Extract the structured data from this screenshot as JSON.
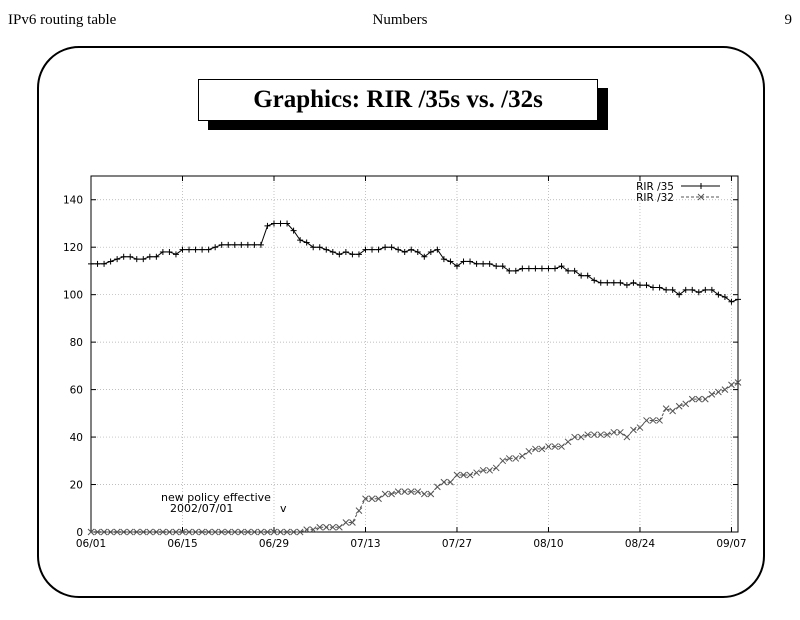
{
  "header": {
    "left": "IPv6 routing table",
    "center": "Numbers",
    "right": "9"
  },
  "slide_title": "Graphics: RIR /35s vs. /32s",
  "chart_data": {
    "type": "line",
    "x_ticks": [
      "06/01",
      "06/15",
      "06/29",
      "07/13",
      "07/27",
      "08/10",
      "08/24",
      "09/07"
    ],
    "x_tick_days": [
      0,
      14,
      28,
      42,
      56,
      70,
      84,
      98
    ],
    "xlim": [
      0,
      99
    ],
    "ylim": [
      0,
      150
    ],
    "y_ticks": [
      0,
      20,
      40,
      60,
      80,
      100,
      120,
      140
    ],
    "grid": true,
    "legend_position": "top-right",
    "annotation_lines": [
      "new policy effective",
      "2002/07/01",
      "v"
    ],
    "series": [
      {
        "name": "RIR /35",
        "marker": "+",
        "style": "solid",
        "x": [
          0,
          1,
          2,
          3,
          4,
          5,
          6,
          7,
          8,
          9,
          10,
          11,
          12,
          13,
          14,
          15,
          16,
          17,
          18,
          19,
          20,
          21,
          22,
          23,
          24,
          25,
          26,
          27,
          28,
          29,
          30,
          31,
          32,
          33,
          34,
          35,
          36,
          37,
          38,
          39,
          40,
          41,
          42,
          43,
          44,
          45,
          46,
          47,
          48,
          49,
          50,
          51,
          52,
          53,
          54,
          55,
          56,
          57,
          58,
          59,
          60,
          61,
          62,
          63,
          64,
          65,
          66,
          67,
          68,
          69,
          70,
          71,
          72,
          73,
          74,
          75,
          76,
          77,
          78,
          79,
          80,
          81,
          82,
          83,
          84,
          85,
          86,
          87,
          88,
          89,
          90,
          91,
          92,
          93,
          94,
          95,
          96,
          97,
          98,
          99
        ],
        "y": [
          113,
          113,
          113,
          114,
          115,
          116,
          116,
          115,
          115,
          116,
          116,
          118,
          118,
          117,
          119,
          119,
          119,
          119,
          119,
          120,
          121,
          121,
          121,
          121,
          121,
          121,
          121,
          129,
          130,
          130,
          130,
          127,
          123,
          122,
          120,
          120,
          119,
          118,
          117,
          118,
          117,
          117,
          119,
          119,
          119,
          120,
          120,
          119,
          118,
          119,
          118,
          116,
          118,
          119,
          115,
          114,
          112,
          114,
          114,
          113,
          113,
          113,
          112,
          112,
          110,
          110,
          111,
          111,
          111,
          111,
          111,
          111,
          112,
          110,
          110,
          108,
          108,
          106,
          105,
          105,
          105,
          105,
          104,
          105,
          104,
          104,
          103,
          103,
          102,
          102,
          100,
          102,
          102,
          101,
          102,
          102,
          100,
          99,
          97,
          98
        ]
      },
      {
        "name": "RIR /32",
        "marker": "x",
        "style": "dashed",
        "x": [
          0,
          1,
          2,
          3,
          4,
          5,
          6,
          7,
          8,
          9,
          10,
          11,
          12,
          13,
          14,
          15,
          16,
          17,
          18,
          19,
          20,
          21,
          22,
          23,
          24,
          25,
          26,
          27,
          28,
          29,
          30,
          31,
          32,
          33,
          34,
          35,
          36,
          37,
          38,
          39,
          40,
          41,
          42,
          43,
          44,
          45,
          46,
          47,
          48,
          49,
          50,
          51,
          52,
          53,
          54,
          55,
          56,
          57,
          58,
          59,
          60,
          61,
          62,
          63,
          64,
          65,
          66,
          67,
          68,
          69,
          70,
          71,
          72,
          73,
          74,
          75,
          76,
          77,
          78,
          79,
          80,
          81,
          82,
          83,
          84,
          85,
          86,
          87,
          88,
          89,
          90,
          91,
          92,
          93,
          94,
          95,
          96,
          97,
          98,
          99
        ],
        "y": [
          0,
          0,
          0,
          0,
          0,
          0,
          0,
          0,
          0,
          0,
          0,
          0,
          0,
          0,
          0,
          0,
          0,
          0,
          0,
          0,
          0,
          0,
          0,
          0,
          0,
          0,
          0,
          0,
          0,
          0,
          0,
          0,
          0,
          1,
          1,
          2,
          2,
          2,
          2,
          4,
          4,
          9,
          14,
          14,
          14,
          16,
          16,
          17,
          17,
          17,
          17,
          16,
          16,
          19,
          21,
          21,
          24,
          24,
          24,
          25,
          26,
          26,
          27,
          30,
          31,
          31,
          32,
          34,
          35,
          35,
          36,
          36,
          36,
          38,
          40,
          40,
          41,
          41,
          41,
          41,
          42,
          42,
          40,
          43,
          44,
          47,
          47,
          47,
          52,
          51,
          53,
          54,
          56,
          56,
          56,
          58,
          59,
          60,
          62,
          63
        ]
      }
    ]
  }
}
